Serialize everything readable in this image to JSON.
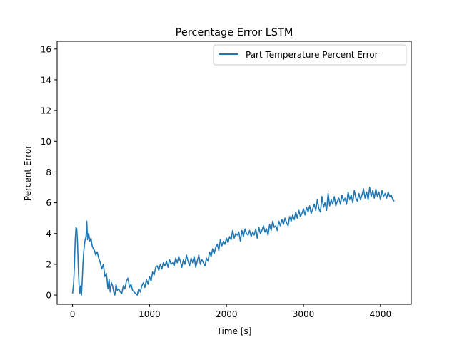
{
  "chart_data": {
    "type": "line",
    "title": "Percentage Error LSTM",
    "xlabel": "Time [s]",
    "ylabel": "Percent Error",
    "xlim": [
      -200,
      4400
    ],
    "ylim": [
      -0.6,
      16.5
    ],
    "xticks": [
      0,
      1000,
      2000,
      3000,
      4000
    ],
    "yticks": [
      0,
      2,
      4,
      6,
      8,
      10,
      12,
      14,
      16
    ],
    "grid": false,
    "legend_position": "top-right",
    "series": [
      {
        "name": "Part Temperature Percent Error",
        "color": "#1f77b4",
        "points": [
          [
            0,
            0.1
          ],
          [
            15,
            0.8
          ],
          [
            25,
            2.0
          ],
          [
            35,
            3.6
          ],
          [
            45,
            4.4
          ],
          [
            55,
            4.3
          ],
          [
            65,
            3.4
          ],
          [
            75,
            1.8
          ],
          [
            85,
            0.6
          ],
          [
            95,
            0.1
          ],
          [
            105,
            0.6
          ],
          [
            115,
            0.0
          ],
          [
            125,
            0.8
          ],
          [
            135,
            2.0
          ],
          [
            145,
            2.8
          ],
          [
            160,
            3.5
          ],
          [
            175,
            3.8
          ],
          [
            185,
            4.8
          ],
          [
            195,
            3.6
          ],
          [
            210,
            4.0
          ],
          [
            225,
            3.5
          ],
          [
            240,
            3.7
          ],
          [
            255,
            3.2
          ],
          [
            270,
            3.0
          ],
          [
            285,
            2.9
          ],
          [
            300,
            2.6
          ],
          [
            320,
            2.8
          ],
          [
            340,
            2.4
          ],
          [
            360,
            2.1
          ],
          [
            380,
            1.7
          ],
          [
            400,
            2.0
          ],
          [
            420,
            1.2
          ],
          [
            440,
            1.4
          ],
          [
            460,
            0.4
          ],
          [
            475,
            1.0
          ],
          [
            490,
            0.2
          ],
          [
            505,
            0.8
          ],
          [
            520,
            0.6
          ],
          [
            535,
            0.2
          ],
          [
            550,
            0.0
          ],
          [
            565,
            0.7
          ],
          [
            580,
            0.3
          ],
          [
            600,
            0.4
          ],
          [
            620,
            0.2
          ],
          [
            640,
            0.1
          ],
          [
            660,
            0.6
          ],
          [
            680,
            0.4
          ],
          [
            700,
            0.9
          ],
          [
            720,
            1.1
          ],
          [
            740,
            0.5
          ],
          [
            760,
            0.7
          ],
          [
            780,
            0.3
          ],
          [
            800,
            0.2
          ],
          [
            820,
            0.1
          ],
          [
            840,
            0.0
          ],
          [
            860,
            0.4
          ],
          [
            880,
            0.2
          ],
          [
            900,
            0.6
          ],
          [
            920,
            0.8
          ],
          [
            940,
            0.5
          ],
          [
            960,
            1.0
          ],
          [
            980,
            0.7
          ],
          [
            1000,
            1.2
          ],
          [
            1020,
            0.9
          ],
          [
            1040,
            1.5
          ],
          [
            1060,
            1.3
          ],
          [
            1080,
            1.8
          ],
          [
            1100,
            1.9
          ],
          [
            1120,
            1.6
          ],
          [
            1140,
            2.0
          ],
          [
            1160,
            1.7
          ],
          [
            1180,
            2.1
          ],
          [
            1200,
            1.9
          ],
          [
            1220,
            2.2
          ],
          [
            1240,
            1.8
          ],
          [
            1260,
            2.3
          ],
          [
            1280,
            2.0
          ],
          [
            1300,
            2.1
          ],
          [
            1320,
            1.9
          ],
          [
            1340,
            2.4
          ],
          [
            1360,
            2.1
          ],
          [
            1380,
            2.5
          ],
          [
            1400,
            2.2
          ],
          [
            1420,
            1.8
          ],
          [
            1440,
            2.3
          ],
          [
            1460,
            2.0
          ],
          [
            1480,
            2.6
          ],
          [
            1500,
            2.2
          ],
          [
            1520,
            1.9
          ],
          [
            1540,
            2.4
          ],
          [
            1560,
            2.1
          ],
          [
            1580,
            2.5
          ],
          [
            1600,
            1.8
          ],
          [
            1620,
            2.2
          ],
          [
            1640,
            2.6
          ],
          [
            1660,
            2.0
          ],
          [
            1680,
            2.3
          ],
          [
            1700,
            2.1
          ],
          [
            1720,
            1.9
          ],
          [
            1740,
            2.4
          ],
          [
            1760,
            2.2
          ],
          [
            1780,
            2.8
          ],
          [
            1800,
            2.5
          ],
          [
            1820,
            3.0
          ],
          [
            1840,
            2.7
          ],
          [
            1860,
            3.1
          ],
          [
            1880,
            3.3
          ],
          [
            1900,
            2.9
          ],
          [
            1920,
            3.6
          ],
          [
            1940,
            3.2
          ],
          [
            1960,
            3.5
          ],
          [
            1980,
            3.3
          ],
          [
            2000,
            3.7
          ],
          [
            2020,
            3.4
          ],
          [
            2040,
            3.8
          ],
          [
            2060,
            3.6
          ],
          [
            2080,
            4.2
          ],
          [
            2100,
            3.7
          ],
          [
            2120,
            4.0
          ],
          [
            2140,
            3.9
          ],
          [
            2160,
            4.1
          ],
          [
            2180,
            3.5
          ],
          [
            2200,
            4.2
          ],
          [
            2220,
            3.8
          ],
          [
            2240,
            4.3
          ],
          [
            2260,
            4.0
          ],
          [
            2280,
            3.9
          ],
          [
            2300,
            4.2
          ],
          [
            2320,
            3.8
          ],
          [
            2340,
            4.1
          ],
          [
            2360,
            3.9
          ],
          [
            2380,
            4.3
          ],
          [
            2400,
            3.7
          ],
          [
            2420,
            4.4
          ],
          [
            2440,
            4.0
          ],
          [
            2460,
            4.2
          ],
          [
            2480,
            4.5
          ],
          [
            2500,
            4.1
          ],
          [
            2520,
            4.3
          ],
          [
            2540,
            3.9
          ],
          [
            2560,
            4.6
          ],
          [
            2580,
            4.2
          ],
          [
            2600,
            4.8
          ],
          [
            2620,
            4.4
          ],
          [
            2640,
            4.5
          ],
          [
            2660,
            4.2
          ],
          [
            2680,
            4.8
          ],
          [
            2700,
            4.5
          ],
          [
            2720,
            4.9
          ],
          [
            2740,
            4.6
          ],
          [
            2760,
            5.0
          ],
          [
            2780,
            4.7
          ],
          [
            2800,
            4.5
          ],
          [
            2820,
            5.1
          ],
          [
            2840,
            4.8
          ],
          [
            2860,
            5.2
          ],
          [
            2880,
            4.9
          ],
          [
            2900,
            5.4
          ],
          [
            2920,
            5.0
          ],
          [
            2940,
            5.5
          ],
          [
            2960,
            5.1
          ],
          [
            2980,
            5.3
          ],
          [
            3000,
            5.6
          ],
          [
            3020,
            5.2
          ],
          [
            3040,
            5.7
          ],
          [
            3060,
            5.4
          ],
          [
            3080,
            5.8
          ],
          [
            3100,
            5.3
          ],
          [
            3120,
            5.6
          ],
          [
            3140,
            5.9
          ],
          [
            3160,
            5.5
          ],
          [
            3180,
            6.2
          ],
          [
            3200,
            5.6
          ],
          [
            3220,
            5.4
          ],
          [
            3240,
            6.4
          ],
          [
            3260,
            5.7
          ],
          [
            3280,
            6.0
          ],
          [
            3300,
            5.5
          ],
          [
            3320,
            6.6
          ],
          [
            3340,
            5.8
          ],
          [
            3360,
            6.2
          ],
          [
            3380,
            5.9
          ],
          [
            3400,
            6.4
          ],
          [
            3420,
            5.8
          ],
          [
            3440,
            6.1
          ],
          [
            3460,
            6.3
          ],
          [
            3480,
            5.9
          ],
          [
            3500,
            6.5
          ],
          [
            3520,
            6.1
          ],
          [
            3540,
            6.3
          ],
          [
            3560,
            5.9
          ],
          [
            3580,
            6.7
          ],
          [
            3600,
            6.2
          ],
          [
            3620,
            6.5
          ],
          [
            3640,
            6.0
          ],
          [
            3660,
            6.8
          ],
          [
            3680,
            6.3
          ],
          [
            3700,
            6.1
          ],
          [
            3720,
            6.6
          ],
          [
            3740,
            6.2
          ],
          [
            3760,
            6.5
          ],
          [
            3780,
            6.9
          ],
          [
            3800,
            6.3
          ],
          [
            3820,
            6.7
          ],
          [
            3840,
            6.2
          ],
          [
            3860,
            7.0
          ],
          [
            3880,
            6.4
          ],
          [
            3900,
            6.8
          ],
          [
            3920,
            6.3
          ],
          [
            3940,
            6.9
          ],
          [
            3960,
            6.4
          ],
          [
            3980,
            6.7
          ],
          [
            4000,
            6.2
          ],
          [
            4020,
            6.8
          ],
          [
            4040,
            6.4
          ],
          [
            4060,
            6.6
          ],
          [
            4080,
            6.3
          ],
          [
            4100,
            6.7
          ],
          [
            4120,
            6.4
          ],
          [
            4140,
            6.5
          ],
          [
            4160,
            6.2
          ],
          [
            4180,
            6.1
          ]
        ]
      }
    ]
  }
}
